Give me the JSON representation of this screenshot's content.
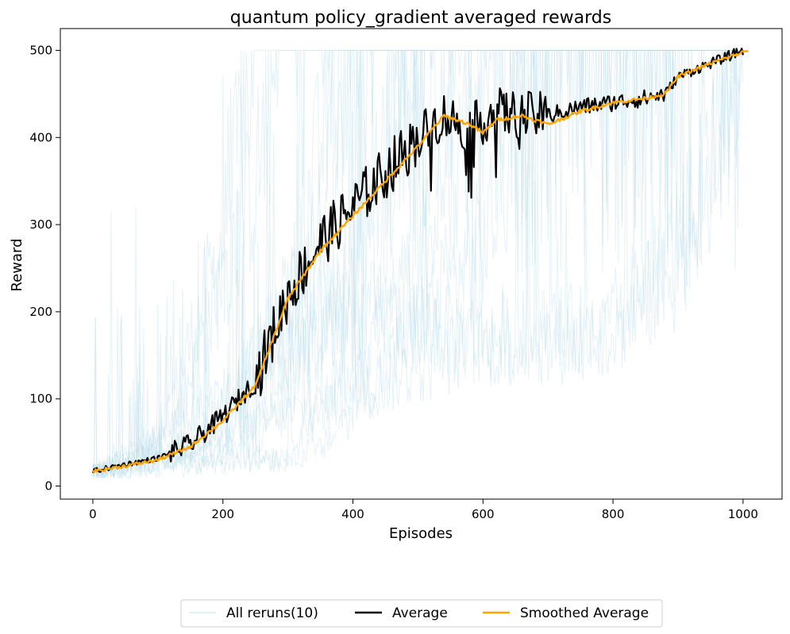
{
  "chart_data": {
    "type": "line",
    "title": "quantum policy_gradient averaged rewards",
    "xlabel": "Episodes",
    "ylabel": "Reward",
    "xlim": [
      -50,
      1060
    ],
    "ylim": [
      -15,
      525
    ],
    "xticks": [
      0,
      200,
      400,
      600,
      800,
      1000
    ],
    "yticks": [
      0,
      100,
      200,
      300,
      400,
      500
    ],
    "grid": false,
    "legend_position": "bottom-center",
    "colors": {
      "reruns": "#add8e6",
      "average": "#000000",
      "smoothed": "#ffa500"
    },
    "series": [
      {
        "name": "All reruns(10)",
        "role": "reruns",
        "count": 10,
        "end_episodes": [
          1000,
          1000,
          1000,
          1000,
          1000,
          1000,
          1000,
          1000,
          1000,
          1000
        ],
        "profiles": [
          {
            "x": [
              0,
              100,
              200,
              250,
              1000
            ],
            "y": [
              15,
              50,
              280,
              500,
              500
            ]
          },
          {
            "x": [
              0,
              120,
              250,
              290,
              1000
            ],
            "y": [
              15,
              60,
              350,
              500,
              500
            ]
          },
          {
            "x": [
              0,
              150,
              300,
              380,
              1000
            ],
            "y": [
              15,
              40,
              200,
              500,
              500
            ]
          },
          {
            "x": [
              0,
              200,
              350,
              420,
              1000
            ],
            "y": [
              15,
              60,
              300,
              500,
              500
            ]
          },
          {
            "x": [
              0,
              200,
              400,
              500,
              1000
            ],
            "y": [
              15,
              40,
              250,
              500,
              500
            ]
          },
          {
            "x": [
              0,
              250,
              450,
              560,
              1000
            ],
            "y": [
              15,
              50,
              300,
              500,
              500
            ]
          },
          {
            "x": [
              0,
              300,
              500,
              620,
              1000
            ],
            "y": [
              15,
              30,
              250,
              500,
              500
            ]
          },
          {
            "x": [
              0,
              350,
              600,
              700,
              1000
            ],
            "y": [
              15,
              40,
              280,
              500,
              500
            ]
          },
          {
            "x": [
              0,
              380,
              580,
              780,
              920,
              1000
            ],
            "y": [
              15,
              100,
              160,
              170,
              300,
              500
            ]
          },
          {
            "x": [
              0,
              420,
              600,
              800,
              900,
              950,
              1000
            ],
            "y": [
              15,
              200,
              170,
              180,
              250,
              400,
              500
            ]
          }
        ]
      },
      {
        "name": "Average",
        "role": "average",
        "x": [
          0,
          50,
          100,
          150,
          200,
          250,
          300,
          350,
          400,
          450,
          500,
          540,
          580,
          620,
          660,
          700,
          750,
          800,
          850,
          880,
          900,
          950,
          1000
        ],
        "y": [
          17,
          25,
          32,
          48,
          80,
          120,
          220,
          280,
          320,
          360,
          400,
          425,
          410,
          430,
          425,
          425,
          435,
          440,
          445,
          450,
          470,
          485,
          500
        ]
      },
      {
        "name": "Smoothed Average",
        "role": "smoothed",
        "x": [
          0,
          50,
          100,
          150,
          200,
          250,
          300,
          350,
          400,
          450,
          500,
          540,
          580,
          600,
          620,
          660,
          700,
          750,
          800,
          850,
          880,
          900,
          950,
          1008
        ],
        "y": [
          17,
          23,
          30,
          45,
          75,
          115,
          215,
          270,
          310,
          350,
          390,
          425,
          415,
          405,
          420,
          425,
          415,
          430,
          440,
          445,
          450,
          470,
          485,
          500
        ]
      }
    ]
  }
}
